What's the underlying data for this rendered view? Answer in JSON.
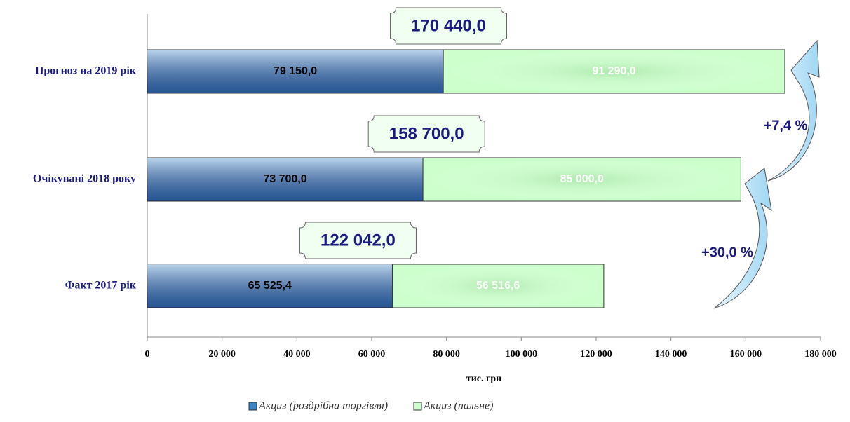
{
  "chart_data": {
    "type": "stacked-bar-horizontal",
    "categories": [
      "Прогноз на 2019 рік",
      "Очікувані 2018 року",
      "Факт 2017 рік"
    ],
    "series": [
      {
        "name": "Акциз (роздрібна торгівля)",
        "color": "#3a84c8",
        "values": [
          79150,
          73700,
          65525.4
        ],
        "value_labels": [
          "79 150,0",
          "73 700,0",
          "65 525,4"
        ]
      },
      {
        "name": "Акциз (пальне)",
        "color": "#ccffcc",
        "values": [
          91290,
          85000,
          56516.6
        ],
        "value_labels": [
          "91 290,0",
          "85 000,0",
          "56 516,6"
        ]
      }
    ],
    "totals": [
      170440,
      158700,
      122042
    ],
    "total_labels": [
      "170 440,0",
      "158 700,0",
      "122 042,0"
    ],
    "annotations": [
      "+7,4 %",
      "+30,0 %"
    ],
    "xlabel": "тис. грн",
    "xlim": [
      0,
      180000
    ],
    "xticks": [
      0,
      {
        "value": 20000,
        "label": "20 000"
      },
      {
        "value": 40000,
        "label": "40 000"
      },
      {
        "value": 60000,
        "label": "60 000"
      },
      {
        "value": 80000,
        "label": "80 000"
      },
      {
        "value": 100000,
        "label": "100 000"
      },
      {
        "value": 120000,
        "label": "120 000"
      },
      {
        "value": 140000,
        "label": "140 000"
      },
      {
        "value": 160000,
        "label": "160 000"
      },
      {
        "value": 180000,
        "label": "180 000"
      }
    ],
    "legend": "bottom"
  }
}
